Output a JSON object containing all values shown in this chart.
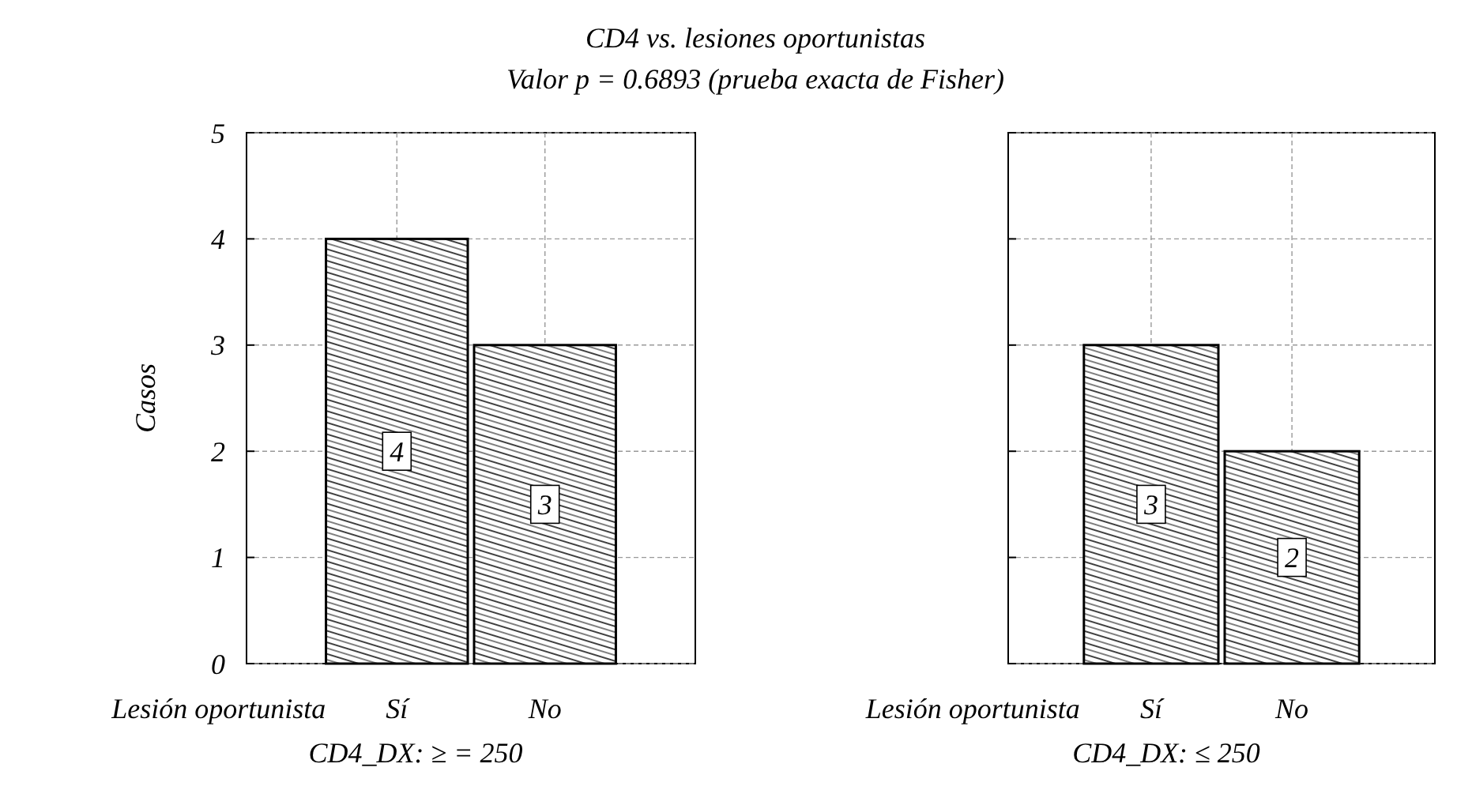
{
  "chart_data": [
    {
      "type": "bar",
      "title": "CD4 vs. lesiones oportunistas",
      "subtitle": "Valor p = 0.6893 (prueba exacta de Fisher)",
      "ylabel": "Casos",
      "xlabel": "CD4_DX: ≥ = 250",
      "annotations": [
        "Lesión oportunista"
      ],
      "categories": [
        "Sí",
        "No"
      ],
      "values": [
        4,
        3
      ],
      "color": "#000000",
      "ylim": [
        0,
        5
      ],
      "yticks": [
        0,
        1,
        2,
        3,
        4,
        5
      ],
      "grid": true,
      "data_labels": true
    },
    {
      "type": "bar",
      "xlabel": "CD4_DX: ≤ 250",
      "annotations": [
        "Lesión oportunista"
      ],
      "categories": [
        "Sí",
        "No"
      ],
      "values": [
        3,
        2
      ],
      "color": "#000000",
      "ylim": [
        0,
        5
      ],
      "yticks": [
        0,
        1,
        2,
        3,
        4,
        5
      ],
      "grid": true,
      "data_labels": true,
      "tick_labels": "x"
    }
  ]
}
